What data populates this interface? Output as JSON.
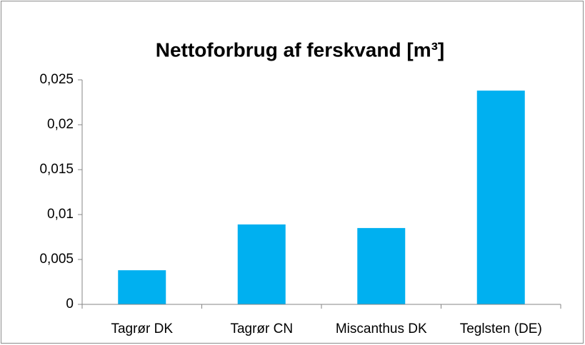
{
  "chart_data": {
    "type": "bar",
    "title": "Nettoforbrug af ferskvand [m³]",
    "categories": [
      "Tagrør DK",
      "Tagrør CN",
      "Miscanthus DK",
      "Teglsten (DE)"
    ],
    "values": [
      0.0038,
      0.0089,
      0.0085,
      0.0238
    ],
    "color": "#00b0f0",
    "ylim": [
      0,
      0.025
    ],
    "yticks": [
      0,
      {
        "value": 0.005,
        "label": "0,005"
      },
      {
        "value": 0.01,
        "label": "0,01"
      },
      {
        "value": 0.015,
        "label": "0,015"
      },
      {
        "value": 0.02,
        "label": "0,02"
      },
      {
        "value": 0.025,
        "label": "0,025"
      }
    ],
    "grid": false
  }
}
